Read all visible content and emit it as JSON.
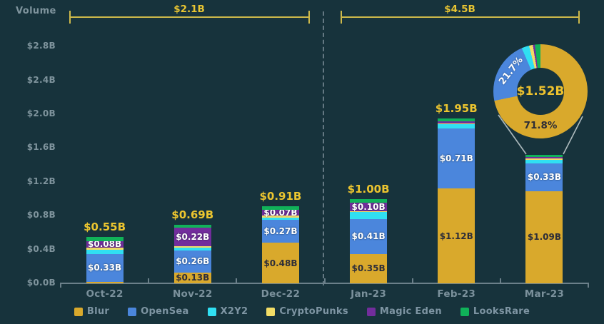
{
  "colors": {
    "background": "#17333c",
    "axis_text": "#7f949d",
    "total_text": "#ecc52f",
    "bracket": "#e8c532",
    "divider": "#7e909a",
    "callout_line": "#c9d3d5"
  },
  "chart_data": {
    "type": "bar",
    "stacked": true,
    "ylabel": "Volume",
    "ylim": [
      0,
      2.8
    ],
    "grid": false,
    "yticks": [
      "$0.0B",
      "$0.4B",
      "$0.8B",
      "$1.2B",
      "$1.6B",
      "$2.0B",
      "$2.4B",
      "$2.8B"
    ],
    "categories": [
      "Oct-22",
      "Nov-22",
      "Dec-22",
      "Jan-23",
      "Feb-23",
      "Mar-23"
    ],
    "series": [
      {
        "name": "Blur",
        "color": "#d9a92c",
        "label_style": "dark",
        "values": [
          0.02,
          0.13,
          0.48,
          0.35,
          1.12,
          1.09
        ],
        "labels": [
          null,
          "$0.13B",
          "$0.48B",
          "$0.35B",
          "$1.12B",
          "$1.09B"
        ]
      },
      {
        "name": "OpenSea",
        "color": "#4b86dc",
        "label_style": "light",
        "values": [
          0.33,
          0.26,
          0.27,
          0.41,
          0.71,
          0.33
        ],
        "labels": [
          "$0.33B",
          "$0.26B",
          "$0.27B",
          "$0.41B",
          "$0.71B",
          "$0.33B"
        ]
      },
      {
        "name": "X2Y2",
        "color": "#30dff2",
        "label_style": "light",
        "values": [
          0.05,
          0.03,
          0.03,
          0.08,
          0.05,
          0.04
        ],
        "labels": [
          null,
          null,
          null,
          null,
          null,
          null
        ]
      },
      {
        "name": "CryptoPunks",
        "color": "#f2dd66",
        "label_style": "dark",
        "values": [
          0.02,
          0.02,
          0.02,
          0.01,
          0.01,
          0.02
        ],
        "labels": [
          null,
          null,
          null,
          null,
          null,
          null
        ]
      },
      {
        "name": "Magic Eden",
        "color": "#722d9c",
        "label_style": "light",
        "values": [
          0.08,
          0.22,
          0.07,
          0.1,
          0.03,
          0.01
        ],
        "labels": [
          "$0.08B",
          "$0.22B",
          "$0.07B",
          "$0.10B",
          null,
          null
        ]
      },
      {
        "name": "LooksRare",
        "color": "#10b259",
        "label_style": "light",
        "values": [
          0.05,
          0.03,
          0.04,
          0.05,
          0.03,
          0.03
        ],
        "labels": [
          null,
          null,
          null,
          null,
          null,
          null
        ]
      }
    ],
    "bar_totals": [
      "$0.55B",
      "$0.69B",
      "$0.91B",
      "$1.00B",
      "$1.95B",
      null
    ],
    "annotations": {
      "left_bracket": {
        "label": "$2.1B",
        "covers": [
          "Oct-22",
          "Nov-22",
          "Dec-22"
        ]
      },
      "right_bracket": {
        "label": "$4.5B",
        "covers": [
          "Jan-23",
          "Feb-23",
          "Mar-23"
        ]
      }
    },
    "donut": {
      "for_category": "Mar-23",
      "center_label": "$1.52B",
      "slices": [
        {
          "name": "Blur",
          "pct": 71.8,
          "label": "71.8%"
        },
        {
          "name": "OpenSea",
          "pct": 21.7,
          "label": "21.7%"
        },
        {
          "name": "X2Y2",
          "pct": 2.6,
          "label": null
        },
        {
          "name": "CryptoPunks",
          "pct": 1.3,
          "label": null
        },
        {
          "name": "Magic Eden",
          "pct": 0.7,
          "label": null
        },
        {
          "name": "LooksRare",
          "pct": 1.9,
          "label": null
        }
      ]
    },
    "legend": [
      "Blur",
      "OpenSea",
      "X2Y2",
      "CryptoPunks",
      "Magic Eden",
      "LooksRare"
    ]
  }
}
